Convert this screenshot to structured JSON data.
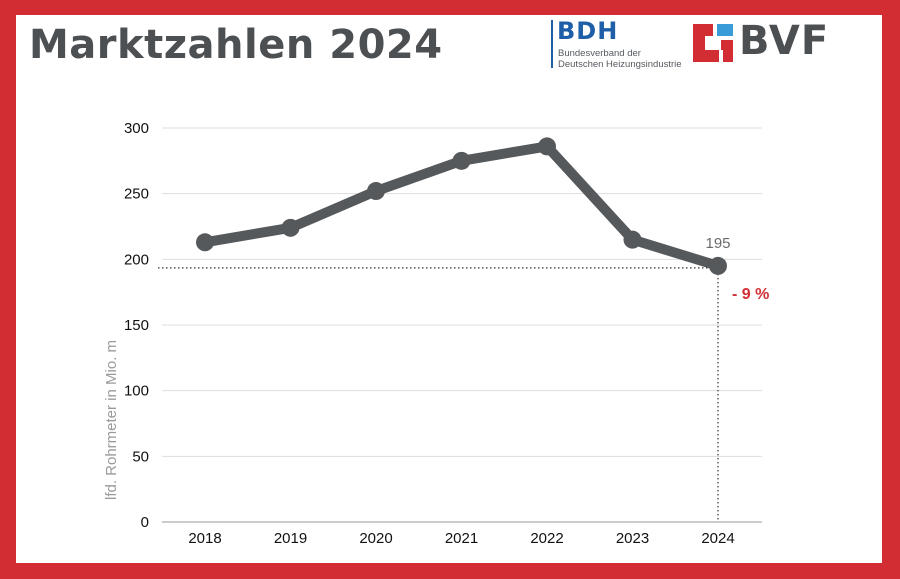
{
  "header": {
    "title": "Marktzahlen 2024"
  },
  "logos": {
    "bdh": {
      "name": "BDH",
      "line1": "Bundesverband der",
      "line2": "Deutschen Heizungsindustrie",
      "color": "#1f5fa8"
    },
    "bvf": {
      "name": "BVF",
      "color": "#d12d33",
      "accent": "#3a9bd9"
    }
  },
  "colors": {
    "frame": "#d12d33",
    "line": "#56595c",
    "grid": "#dddddd",
    "change": "#d12d33"
  },
  "chart_data": {
    "type": "line",
    "title": "",
    "xlabel": "",
    "ylabel": "lfd. Rohrmeter in Mio. m",
    "x": [
      "2018",
      "2019",
      "2020",
      "2021",
      "2022",
      "2023",
      "2024"
    ],
    "series": [
      {
        "values": [
          213,
          224,
          252,
          275,
          286,
          215,
          195
        ]
      }
    ],
    "ylim": [
      0,
      300
    ],
    "yticks": [
      0,
      50,
      100,
      150,
      200,
      250,
      300
    ],
    "grid": true,
    "legend": "none",
    "annotations": {
      "last_value_label": "195",
      "change_label": "- 9 %"
    }
  }
}
